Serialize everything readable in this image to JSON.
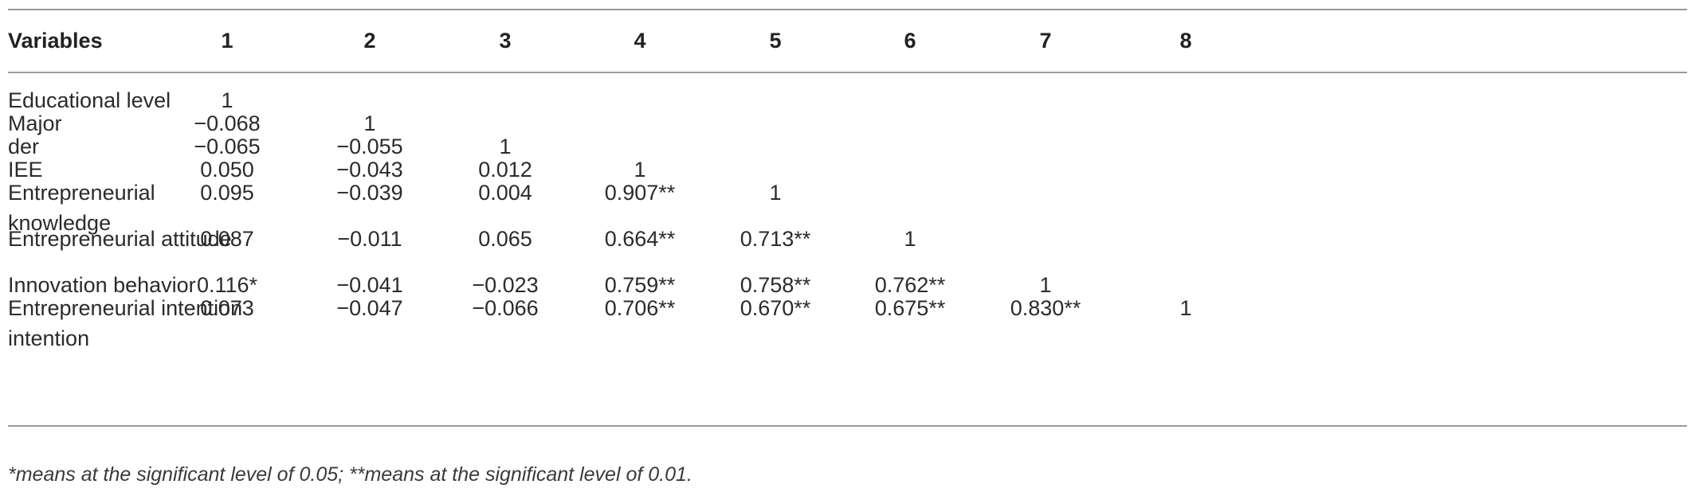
{
  "table": {
    "headers": [
      "Variables",
      "1",
      "2",
      "3",
      "4",
      "5",
      "6",
      "7",
      "8"
    ],
    "rows": [
      {
        "label": "Educational level",
        "values": [
          "1",
          "",
          "",
          "",
          "",
          "",
          "",
          ""
        ]
      },
      {
        "label": "Major",
        "values": [
          "−0.068",
          "1",
          "",
          "",
          "",
          "",
          "",
          ""
        ]
      },
      {
        "label": "der",
        "values": [
          "−0.065",
          "−0.055",
          "1",
          "",
          "",
          "",
          "",
          ""
        ]
      },
      {
        "label": "IEE",
        "values": [
          "0.050",
          "−0.043",
          "0.012",
          "1",
          "",
          "",
          "",
          ""
        ]
      },
      {
        "label": "Entrepreneurial knowledge",
        "values": [
          "0.095",
          "−0.039",
          "0.004",
          "0.907**",
          "1",
          "",
          "",
          ""
        ]
      },
      {
        "label": "Entrepreneurial attitude",
        "values": [
          "0.087",
          "−0.011",
          "0.065",
          "0.664**",
          "0.713**",
          "1",
          "",
          ""
        ]
      },
      {
        "label": "Innovation behavior",
        "values": [
          "0.116*",
          "−0.041",
          "−0.023",
          "0.759**",
          "0.758**",
          "0.762**",
          "1",
          ""
        ]
      },
      {
        "label": "Entrepreneurial intention intention",
        "values": [
          "0.073",
          "−0.047",
          "−0.066",
          "0.706**",
          "0.670**",
          "0.675**",
          "0.830**",
          "1"
        ]
      }
    ]
  },
  "footnote": "*means at the significant level of 0.05; **means at the significant level of 0.01."
}
